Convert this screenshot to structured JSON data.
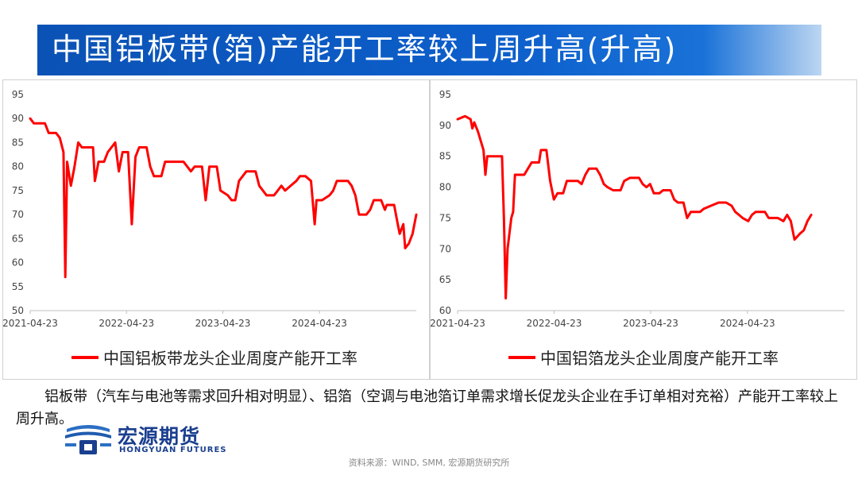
{
  "header": {
    "title": "中国铝板带(箔)产能开工率较上周升高(升高)"
  },
  "commentary": "铝板带（汽车与电池等需求回升相对明显）、铝箔（空调与电池箔订单需求增长促龙头企业在手订单相对充裕）产能开工率较上周升高。",
  "logo": {
    "name_cn": "宏源期货",
    "name_en": "HONGYUAN FUTURES"
  },
  "source": "资料来源：WIND, SMM, 宏源期货研究所",
  "colors": {
    "title_bar": "#0d5fcc",
    "series": "#ff0000",
    "brand": "#1a3f8f"
  },
  "chart_data": [
    {
      "type": "line",
      "legend_position": "bottom",
      "grid": false,
      "x_tick_labels": [
        "2021-04-23",
        "2022-04-23",
        "2023-04-23",
        "2024-04-23"
      ],
      "xlim": [
        "2021-04-23",
        "2025-04-25"
      ],
      "ylim": [
        50,
        95
      ],
      "y_ticks": [
        50,
        55,
        60,
        65,
        70,
        75,
        80,
        85,
        90,
        95
      ],
      "series": [
        {
          "name": "中国铝板带龙头企业周度产能开工率",
          "points": [
            [
              "2021-04-23",
              90
            ],
            [
              "2021-05-07",
              89
            ],
            [
              "2021-06-18",
              89
            ],
            [
              "2021-07-02",
              87
            ],
            [
              "2021-07-30",
              87
            ],
            [
              "2021-08-13",
              86
            ],
            [
              "2021-08-27",
              83
            ],
            [
              "2021-09-03",
              57
            ],
            [
              "2021-09-10",
              81
            ],
            [
              "2021-09-24",
              76
            ],
            [
              "2021-10-08",
              80
            ],
            [
              "2021-10-22",
              85
            ],
            [
              "2021-11-05",
              84
            ],
            [
              "2021-12-17",
              84
            ],
            [
              "2021-12-24",
              77
            ],
            [
              "2022-01-07",
              81
            ],
            [
              "2022-01-28",
              81
            ],
            [
              "2022-02-11",
              83
            ],
            [
              "2022-03-11",
              85
            ],
            [
              "2022-03-25",
              79
            ],
            [
              "2022-04-08",
              83
            ],
            [
              "2022-04-29",
              83
            ],
            [
              "2022-05-13",
              68
            ],
            [
              "2022-05-27",
              82
            ],
            [
              "2022-06-10",
              84
            ],
            [
              "2022-07-08",
              84
            ],
            [
              "2022-07-22",
              80
            ],
            [
              "2022-08-05",
              78
            ],
            [
              "2022-09-02",
              78
            ],
            [
              "2022-09-16",
              81
            ],
            [
              "2022-10-28",
              81
            ],
            [
              "2022-11-25",
              81
            ],
            [
              "2022-12-09",
              80
            ],
            [
              "2022-12-23",
              79
            ],
            [
              "2023-01-06",
              80
            ],
            [
              "2023-02-03",
              80
            ],
            [
              "2023-02-17",
              73
            ],
            [
              "2023-03-03",
              80
            ],
            [
              "2023-03-31",
              80
            ],
            [
              "2023-04-14",
              75
            ],
            [
              "2023-05-12",
              74
            ],
            [
              "2023-05-26",
              73
            ],
            [
              "2023-06-09",
              73
            ],
            [
              "2023-06-23",
              77
            ],
            [
              "2023-07-21",
              79
            ],
            [
              "2023-08-04",
              79
            ],
            [
              "2023-08-25",
              79
            ],
            [
              "2023-09-08",
              76
            ],
            [
              "2023-10-06",
              74
            ],
            [
              "2023-11-03",
              74
            ],
            [
              "2023-11-17",
              75
            ],
            [
              "2023-12-01",
              76
            ],
            [
              "2023-12-15",
              75
            ],
            [
              "2024-01-05",
              76
            ],
            [
              "2024-01-26",
              77
            ],
            [
              "2024-02-09",
              78
            ],
            [
              "2024-03-01",
              78
            ],
            [
              "2024-03-22",
              77
            ],
            [
              "2024-04-05",
              68
            ],
            [
              "2024-04-12",
              73
            ],
            [
              "2024-05-03",
              73
            ],
            [
              "2024-05-31",
              74
            ],
            [
              "2024-06-14",
              75
            ],
            [
              "2024-06-28",
              77
            ],
            [
              "2024-08-09",
              77
            ],
            [
              "2024-08-23",
              76
            ],
            [
              "2024-09-06",
              74
            ],
            [
              "2024-09-20",
              70
            ],
            [
              "2024-10-18",
              70
            ],
            [
              "2024-11-01",
              71
            ],
            [
              "2024-11-15",
              73
            ],
            [
              "2024-12-13",
              73
            ],
            [
              "2024-12-27",
              71
            ],
            [
              "2025-01-03",
              72
            ],
            [
              "2025-01-31",
              72
            ],
            [
              "2025-02-14",
              68
            ],
            [
              "2025-02-21",
              66
            ],
            [
              "2025-03-07",
              68
            ],
            [
              "2025-03-14",
              63
            ],
            [
              "2025-03-28",
              64
            ],
            [
              "2025-04-11",
              66
            ],
            [
              "2025-04-25",
              70
            ]
          ]
        }
      ]
    },
    {
      "type": "line",
      "legend_position": "bottom",
      "grid": false,
      "x_tick_labels": [
        "2021-04-23",
        "2022-04-23",
        "2023-04-23",
        "2024-04-23"
      ],
      "xlim": [
        "2021-04-23",
        "2025-04-25"
      ],
      "ylim": [
        60,
        95
      ],
      "y_ticks": [
        60,
        65,
        70,
        75,
        80,
        85,
        90,
        95
      ],
      "series": [
        {
          "name": "中国铝箔龙头企业周度产能开工率",
          "points": [
            [
              "2021-04-23",
              91
            ],
            [
              "2021-05-21",
              91.5
            ],
            [
              "2021-06-11",
              91
            ],
            [
              "2021-06-18",
              89.5
            ],
            [
              "2021-06-25",
              90.5
            ],
            [
              "2021-07-09",
              89
            ],
            [
              "2021-07-30",
              86
            ],
            [
              "2021-08-06",
              82
            ],
            [
              "2021-08-13",
              85
            ],
            [
              "2021-10-08",
              85
            ],
            [
              "2021-10-15",
              75
            ],
            [
              "2021-10-22",
              62
            ],
            [
              "2021-10-29",
              70
            ],
            [
              "2021-11-12",
              75
            ],
            [
              "2021-11-19",
              76
            ],
            [
              "2021-11-26",
              82
            ],
            [
              "2021-12-03",
              82
            ],
            [
              "2021-12-31",
              82
            ],
            [
              "2022-01-14",
              83
            ],
            [
              "2022-01-28",
              84
            ],
            [
              "2022-02-25",
              84
            ],
            [
              "2022-03-04",
              86
            ],
            [
              "2022-03-25",
              86
            ],
            [
              "2022-04-08",
              81
            ],
            [
              "2022-04-22",
              78
            ],
            [
              "2022-05-06",
              79
            ],
            [
              "2022-05-27",
              79
            ],
            [
              "2022-06-10",
              81
            ],
            [
              "2022-07-22",
              81
            ],
            [
              "2022-08-05",
              80.5
            ],
            [
              "2022-08-19",
              82
            ],
            [
              "2022-09-02",
              83
            ],
            [
              "2022-09-30",
              83
            ],
            [
              "2022-10-14",
              82
            ],
            [
              "2022-10-28",
              80.5
            ],
            [
              "2022-11-11",
              80
            ],
            [
              "2022-12-02",
              79.5
            ],
            [
              "2022-12-30",
              79.5
            ],
            [
              "2023-01-13",
              81
            ],
            [
              "2023-02-03",
              81.5
            ],
            [
              "2023-03-10",
              81.5
            ],
            [
              "2023-03-24",
              80.5
            ],
            [
              "2023-04-07",
              80
            ],
            [
              "2023-04-21",
              80.5
            ],
            [
              "2023-05-05",
              79
            ],
            [
              "2023-05-26",
              79
            ],
            [
              "2023-06-09",
              79.5
            ],
            [
              "2023-07-07",
              79.5
            ],
            [
              "2023-07-21",
              78
            ],
            [
              "2023-08-04",
              77.5
            ],
            [
              "2023-08-25",
              77.5
            ],
            [
              "2023-09-08",
              75
            ],
            [
              "2023-09-22",
              76
            ],
            [
              "2023-10-27",
              76
            ],
            [
              "2023-11-10",
              76.5
            ],
            [
              "2023-12-08",
              77
            ],
            [
              "2024-01-05",
              77.5
            ],
            [
              "2024-02-02",
              77.5
            ],
            [
              "2024-02-23",
              77
            ],
            [
              "2024-03-08",
              76
            ],
            [
              "2024-03-22",
              75.5
            ],
            [
              "2024-04-05",
              75
            ],
            [
              "2024-04-26",
              74.5
            ],
            [
              "2024-05-10",
              75.5
            ],
            [
              "2024-05-24",
              76
            ],
            [
              "2024-06-28",
              76
            ],
            [
              "2024-07-12",
              75
            ],
            [
              "2024-08-16",
              75
            ],
            [
              "2024-09-06",
              74.5
            ],
            [
              "2024-09-20",
              75.5
            ],
            [
              "2024-10-04",
              74.5
            ],
            [
              "2024-10-18",
              71.5
            ],
            [
              "2024-11-08",
              72.5
            ],
            [
              "2024-11-22",
              73
            ],
            [
              "2024-12-06",
              74.5
            ],
            [
              "2024-12-20",
              75.5
            ]
          ]
        }
      ]
    }
  ]
}
